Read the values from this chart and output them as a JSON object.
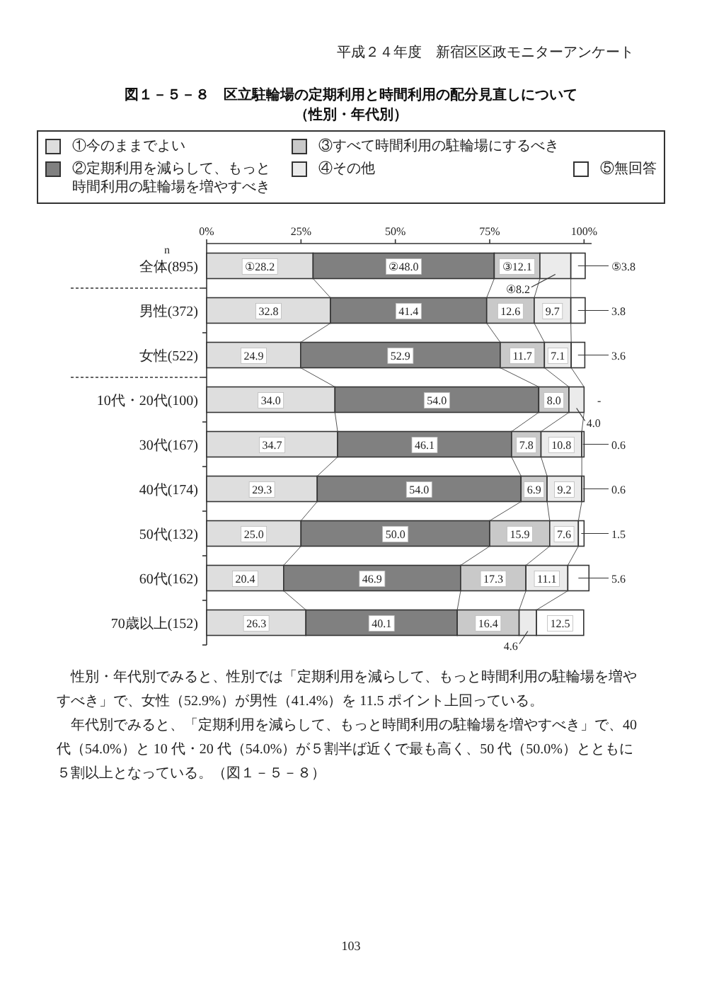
{
  "chart_data": {
    "type": "bar",
    "orientation": "horizontal",
    "stacked": true,
    "title": "図１－５－８　区立駐輪場の定期利用と時間利用の配分見直しについて",
    "subtitle": "（性別・年代別）",
    "ylabel": "n",
    "categories": [
      "全体(895)",
      "男性(372)",
      "女性(522)",
      "10代・20代(100)",
      "30代(167)",
      "40代(174)",
      "50代(132)",
      "60代(162)",
      "70歳以上(152)"
    ],
    "xlim": [
      0,
      102
    ],
    "xticks": [
      {
        "value": 0,
        "label": "0%"
      },
      {
        "value": 25,
        "label": "25%"
      },
      {
        "value": 50,
        "label": "50%"
      },
      {
        "value": 75,
        "label": "75%"
      },
      {
        "value": 100,
        "label": "100%"
      }
    ],
    "legend": "top",
    "series": [
      {
        "name": "①今のままでよい",
        "color": "#dedede",
        "values": [
          28.2,
          32.8,
          24.9,
          34.0,
          34.7,
          29.3,
          25.0,
          20.4,
          26.3
        ],
        "value_labels": [
          "①28.2",
          "32.8",
          "24.9",
          "34.0",
          "34.7",
          "29.3",
          "25.0",
          "20.4",
          "26.3"
        ]
      },
      {
        "name": "②定期利用を減らして、もっと時間利用の駐輪場を増やすべき",
        "color": "#808080",
        "values": [
          48.0,
          41.4,
          52.9,
          54.0,
          46.1,
          54.0,
          50.0,
          46.9,
          40.1
        ],
        "value_labels": [
          "②48.0",
          "41.4",
          "52.9",
          "54.0",
          "46.1",
          "54.0",
          "50.0",
          "46.9",
          "40.1"
        ]
      },
      {
        "name": "③すべて時間利用の駐輪場にするべき",
        "color": "#c9c9c9",
        "values": [
          12.1,
          12.6,
          11.7,
          8.0,
          7.8,
          6.9,
          15.9,
          17.3,
          16.4
        ],
        "value_labels": [
          "③12.1",
          "12.6",
          "11.7",
          "8.0",
          "7.8",
          "6.9",
          "15.9",
          "17.3",
          "16.4"
        ]
      },
      {
        "name": "④その他",
        "color": "#ebebeb",
        "values": [
          8.2,
          9.7,
          7.1,
          4.0,
          10.8,
          9.2,
          7.6,
          11.1,
          4.6
        ],
        "value_labels": [
          "④8.2",
          "9.7",
          "7.1",
          "4.0",
          "10.8",
          "9.2",
          "7.6",
          "11.1",
          "4.6"
        ]
      },
      {
        "name": "⑤無回答",
        "color": "#ffffff",
        "values": [
          3.8,
          3.8,
          3.6,
          0,
          0.6,
          0.6,
          1.5,
          5.6,
          12.5
        ],
        "value_labels": [
          "⑤3.8",
          "3.8",
          "3.6",
          "-",
          "0.6",
          "0.6",
          "1.5",
          "5.6",
          "12.5"
        ]
      }
    ],
    "annotations": [
      "平成２４年度　新宿区区政モニターアンケート",
      "性別・年代別でみると、性別では「定期利用を減らして、もっと時間利用の駐輪場を増やすべき」で、女性（52.9%）が男性（41.4%）を 11.5 ポイント上回っている。",
      "年代別でみると、「定期利用を減らして、もっと時間利用の駐輪場を増やすべき」で、40 代（54.0%）と 10 代・20 代（54.0%）が５割半ば近くで最も高く、50 代（50.0%）とともに５割以上となっている。（図１－５－８）",
      "103"
    ]
  }
}
